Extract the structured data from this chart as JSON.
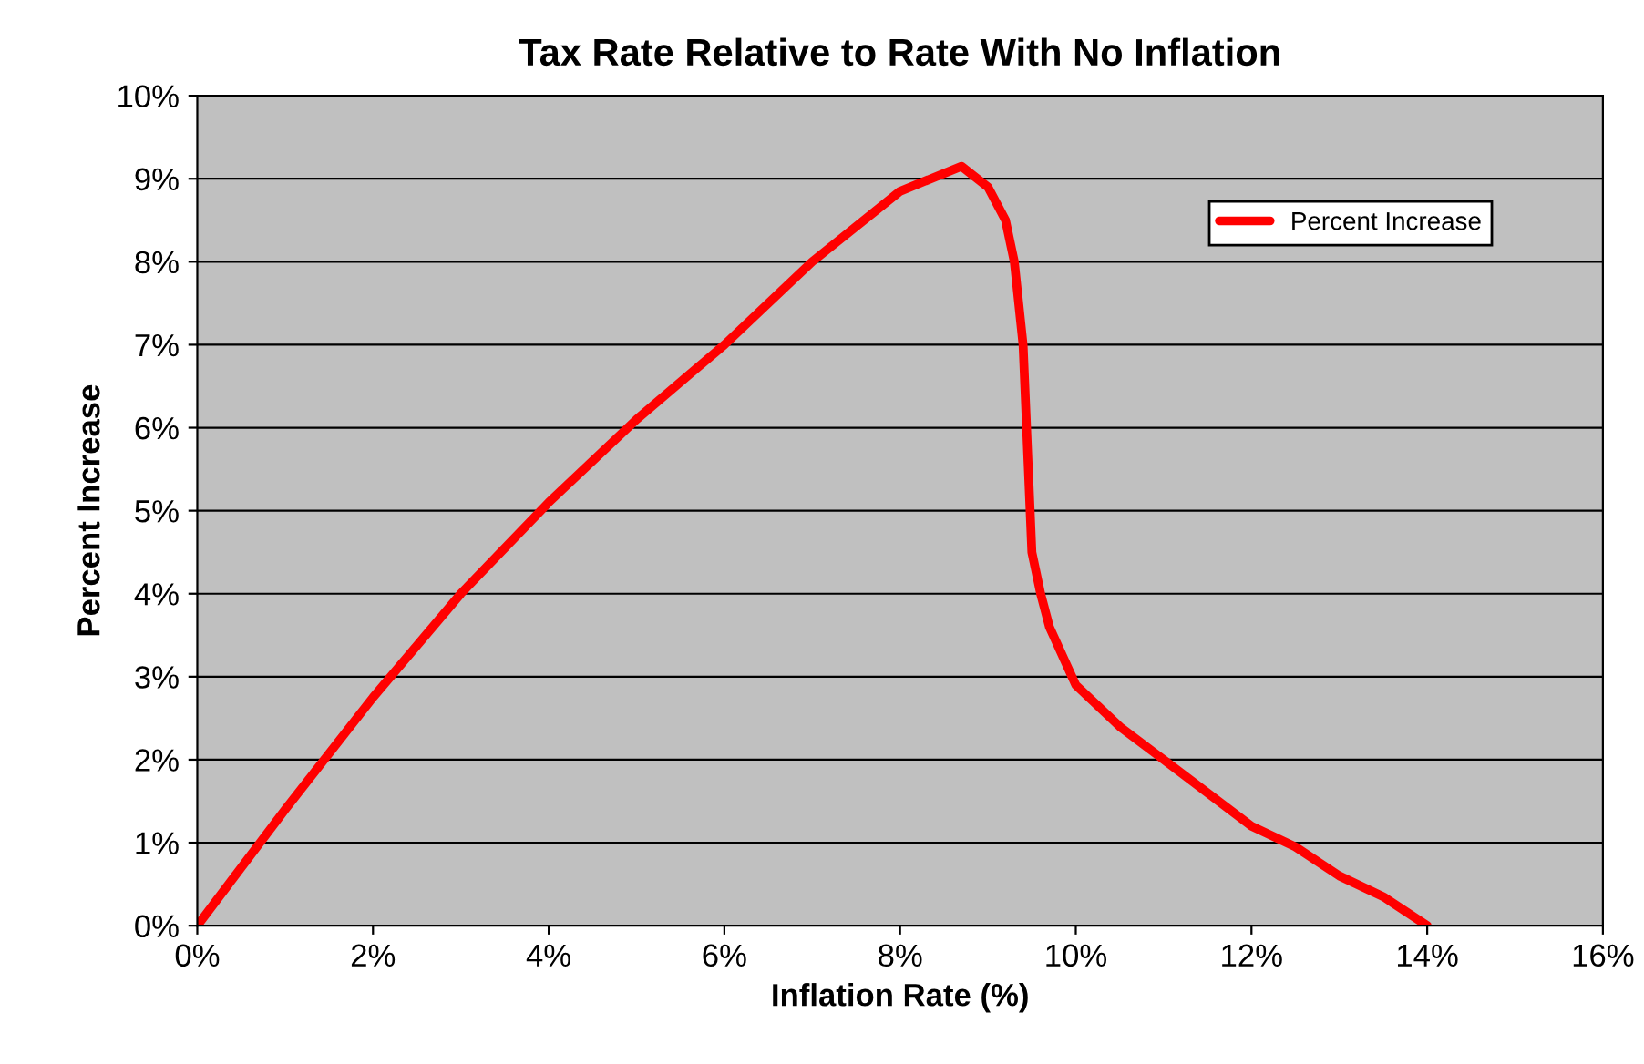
{
  "chart_data": {
    "type": "line",
    "title": "Tax Rate Relative to Rate With No Inflation",
    "xlabel": "Inflation Rate (%)",
    "ylabel": "Percent Increase",
    "series": [
      {
        "name": "Percent Increase",
        "color": "#ff0000",
        "x": [
          0,
          1,
          2,
          3,
          4,
          5,
          6,
          7,
          8,
          8.7,
          9.0,
          9.2,
          9.3,
          9.4,
          9.5,
          9.6,
          9.7,
          10,
          10.5,
          11,
          11.5,
          12,
          12.5,
          13,
          13.5,
          14
        ],
        "values": [
          0,
          1.4,
          2.75,
          4.0,
          5.1,
          6.1,
          7.0,
          8.0,
          8.85,
          9.15,
          8.9,
          8.5,
          8.0,
          7.0,
          4.5,
          4.0,
          3.6,
          2.9,
          2.4,
          2.0,
          1.6,
          1.2,
          0.95,
          0.6,
          0.35,
          0
        ]
      }
    ],
    "xlim": [
      0,
      16
    ],
    "ylim": [
      0,
      10
    ],
    "xticks": [
      {
        "value": 0,
        "label": "0%"
      },
      {
        "value": 2,
        "label": "2%"
      },
      {
        "value": 4,
        "label": "4%"
      },
      {
        "value": 6,
        "label": "6%"
      },
      {
        "value": 8,
        "label": "8%"
      },
      {
        "value": 10,
        "label": "10%"
      },
      {
        "value": 12,
        "label": "12%"
      },
      {
        "value": 14,
        "label": "14%"
      },
      {
        "value": 16,
        "label": "16%"
      }
    ],
    "yticks": [
      {
        "value": 0,
        "label": "0%"
      },
      {
        "value": 1,
        "label": "1%"
      },
      {
        "value": 2,
        "label": "2%"
      },
      {
        "value": 3,
        "label": "3%"
      },
      {
        "value": 4,
        "label": "4%"
      },
      {
        "value": 5,
        "label": "5%"
      },
      {
        "value": 6,
        "label": "6%"
      },
      {
        "value": 7,
        "label": "7%"
      },
      {
        "value": 8,
        "label": "8%"
      },
      {
        "value": 9,
        "label": "9%"
      },
      {
        "value": 10,
        "label": "10%"
      }
    ],
    "grid": "y",
    "legend": "top right",
    "marker": "none",
    "line_style": "solid"
  }
}
